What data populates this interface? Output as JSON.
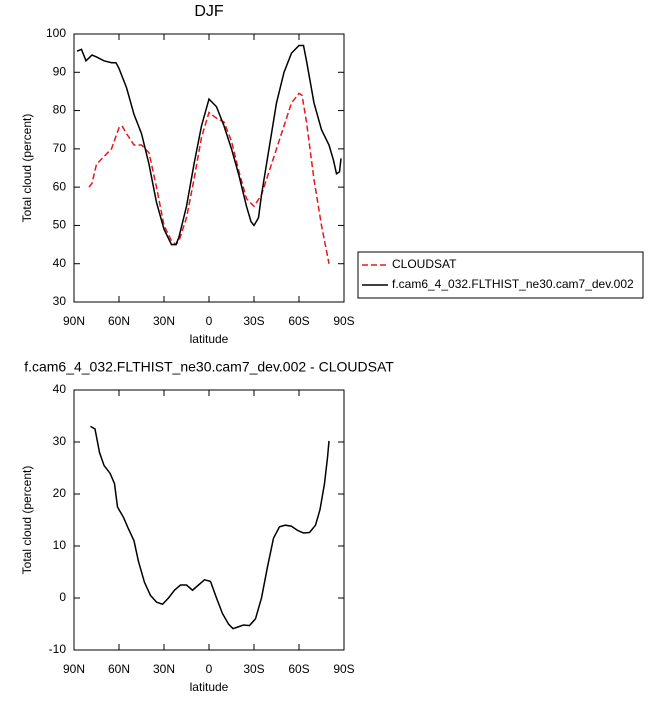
{
  "chart_data": [
    {
      "type": "line",
      "title": "DJF",
      "xlabel": "latitude",
      "ylabel": "Total cloud (percent)",
      "xlim": [
        90,
        -90
      ],
      "xticks": [
        {
          "value": 90,
          "label": "90N"
        },
        {
          "value": 60,
          "label": "60N"
        },
        {
          "value": 30,
          "label": "30N"
        },
        {
          "value": 0,
          "label": "0"
        },
        {
          "value": -30,
          "label": "30S"
        },
        {
          "value": -60,
          "label": "60S"
        },
        {
          "value": -90,
          "label": "90S"
        }
      ],
      "ylim": [
        30,
        100
      ],
      "yticks": [
        30,
        40,
        50,
        60,
        70,
        80,
        90,
        100
      ],
      "legend": "right",
      "series": [
        {
          "name": "CLOUDSAT",
          "color": "#e8161b",
          "dash": true,
          "x": [
            80,
            78,
            75,
            70,
            65,
            60,
            58,
            55,
            50,
            45,
            40,
            35,
            30,
            25,
            22,
            20,
            15,
            10,
            5,
            0,
            -5,
            -10,
            -15,
            -20,
            -25,
            -30,
            -35,
            -40,
            -45,
            -50,
            -55,
            -60,
            -62,
            -65,
            -70,
            -75,
            -80
          ],
          "values": [
            60,
            61,
            66,
            68,
            70,
            75.5,
            76,
            74,
            71,
            71,
            69,
            60,
            50,
            46,
            45,
            46,
            52,
            62,
            73,
            79.5,
            78,
            77,
            72,
            64,
            57,
            55,
            58,
            64,
            70,
            76,
            82,
            84.5,
            84,
            77,
            62,
            50,
            40
          ]
        },
        {
          "name": "f.cam6_4_032.FLTHIST_ne30.cam7_dev.002",
          "color": "#000000",
          "dash": false,
          "x": [
            88,
            85,
            82,
            78,
            75,
            70,
            65,
            62,
            60,
            55,
            50,
            45,
            40,
            35,
            30,
            25,
            22,
            20,
            15,
            10,
            5,
            0,
            -5,
            -10,
            -15,
            -20,
            -25,
            -28,
            -30,
            -33,
            -35,
            -40,
            -45,
            -50,
            -55,
            -60,
            -63,
            -65,
            -70,
            -75,
            -80,
            -83,
            -85,
            -87,
            -88
          ],
          "values": [
            95.5,
            96,
            93,
            94.5,
            94,
            93,
            92.5,
            92.5,
            91,
            86,
            79,
            74,
            66,
            56,
            49,
            45,
            45,
            47,
            55,
            66,
            76,
            83,
            81,
            76,
            70,
            63,
            55,
            51,
            50,
            52,
            58,
            70,
            82,
            90,
            95,
            97,
            97,
            93,
            82,
            75,
            71,
            67,
            63.5,
            64,
            67.5
          ]
        }
      ]
    },
    {
      "type": "line",
      "title": "f.cam6_4_032.FLTHIST_ne30.cam7_dev.002 - CLOUDSAT",
      "xlabel": "latitude",
      "ylabel": "Total cloud (percent)",
      "xlim": [
        90,
        -90
      ],
      "xticks": [
        {
          "value": 90,
          "label": "90N"
        },
        {
          "value": 60,
          "label": "60N"
        },
        {
          "value": 30,
          "label": "30N"
        },
        {
          "value": 0,
          "label": "0"
        },
        {
          "value": -30,
          "label": "30S"
        },
        {
          "value": -60,
          "label": "60S"
        },
        {
          "value": -90,
          "label": "90S"
        }
      ],
      "ylim": [
        -10,
        40
      ],
      "yticks": [
        -10,
        0,
        10,
        20,
        30,
        40
      ],
      "series": [
        {
          "color": "#000000",
          "dash": false,
          "x": [
            79,
            76,
            73,
            70,
            66,
            63,
            61,
            57,
            54,
            50,
            47,
            43,
            39,
            35,
            31,
            27,
            23,
            19,
            15,
            11,
            7,
            3,
            -1,
            -5,
            -9,
            -13,
            -16,
            -19,
            -23,
            -27,
            -31,
            -35,
            -39,
            -43,
            -47,
            -51,
            -55,
            -59,
            -63,
            -67,
            -71,
            -74,
            -77,
            -79,
            -80
          ],
          "values": [
            33,
            32.5,
            28,
            25.5,
            24,
            22,
            17.5,
            15.5,
            13.5,
            11,
            7,
            3,
            0.5,
            -0.8,
            -1.2,
            0,
            1.5,
            2.5,
            2.5,
            1.5,
            2.5,
            3.5,
            3.2,
            0,
            -3,
            -5,
            -5.9,
            -5.6,
            -5.2,
            -5.3,
            -4,
            0,
            6,
            11.5,
            13.7,
            14,
            13.8,
            13,
            12.5,
            12.6,
            14,
            17,
            22,
            27,
            30.2
          ]
        }
      ]
    }
  ]
}
